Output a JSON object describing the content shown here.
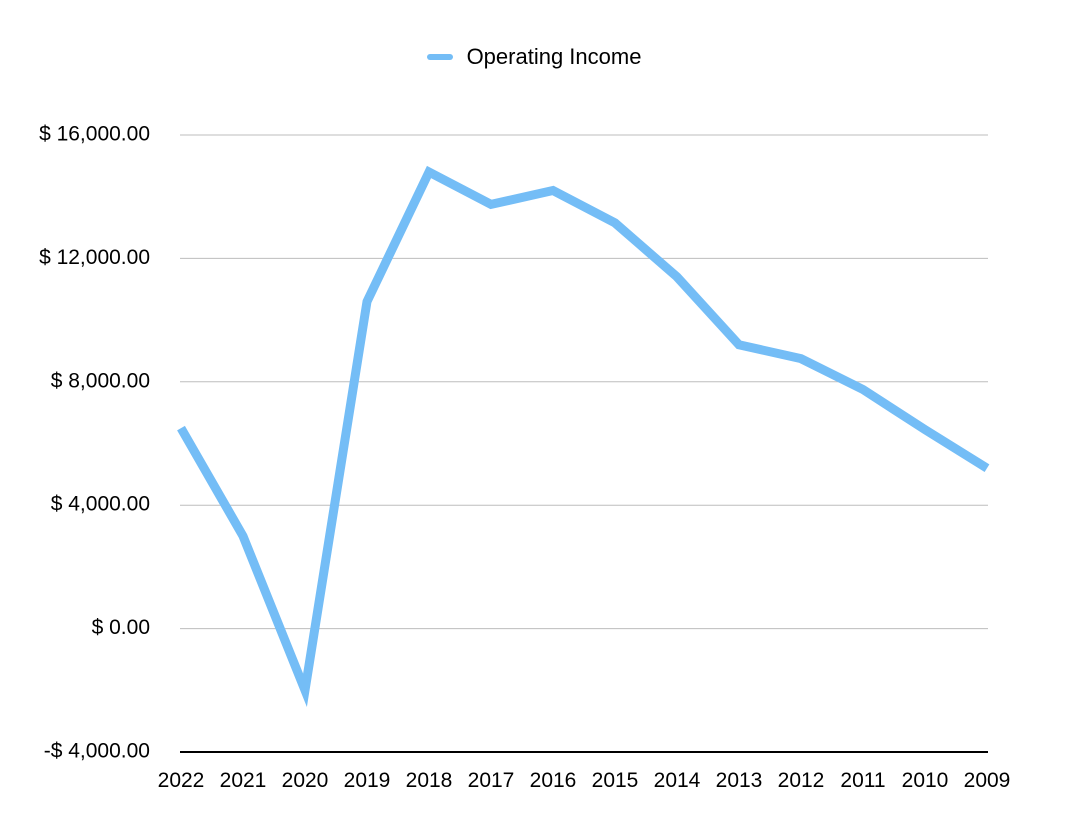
{
  "chart_data": {
    "type": "line",
    "title": "",
    "xlabel": "",
    "ylabel": "",
    "categories": [
      "2022",
      "2021",
      "2020",
      "2019",
      "2018",
      "2017",
      "2016",
      "2015",
      "2014",
      "2013",
      "2012",
      "2011",
      "2010",
      "2009"
    ],
    "series": [
      {
        "name": "Operating Income",
        "color": "#74bdf6",
        "values": [
          6500,
          3000,
          -2000,
          10600,
          14800,
          13750,
          14200,
          13150,
          11400,
          9200,
          8750,
          7750,
          6450,
          5200
        ]
      }
    ],
    "ylim": [
      -4000,
      16000
    ],
    "yticks": [
      16000,
      12000,
      8000,
      4000,
      0,
      -4000
    ],
    "ytick_labels": [
      "$ 16,000.00",
      "$ 12,000.00",
      "$ 8,000.00",
      "$ 4,000.00",
      "$ 0.00",
      "-$ 4,000.00"
    ],
    "grid": true,
    "legend_position": "top-center"
  }
}
